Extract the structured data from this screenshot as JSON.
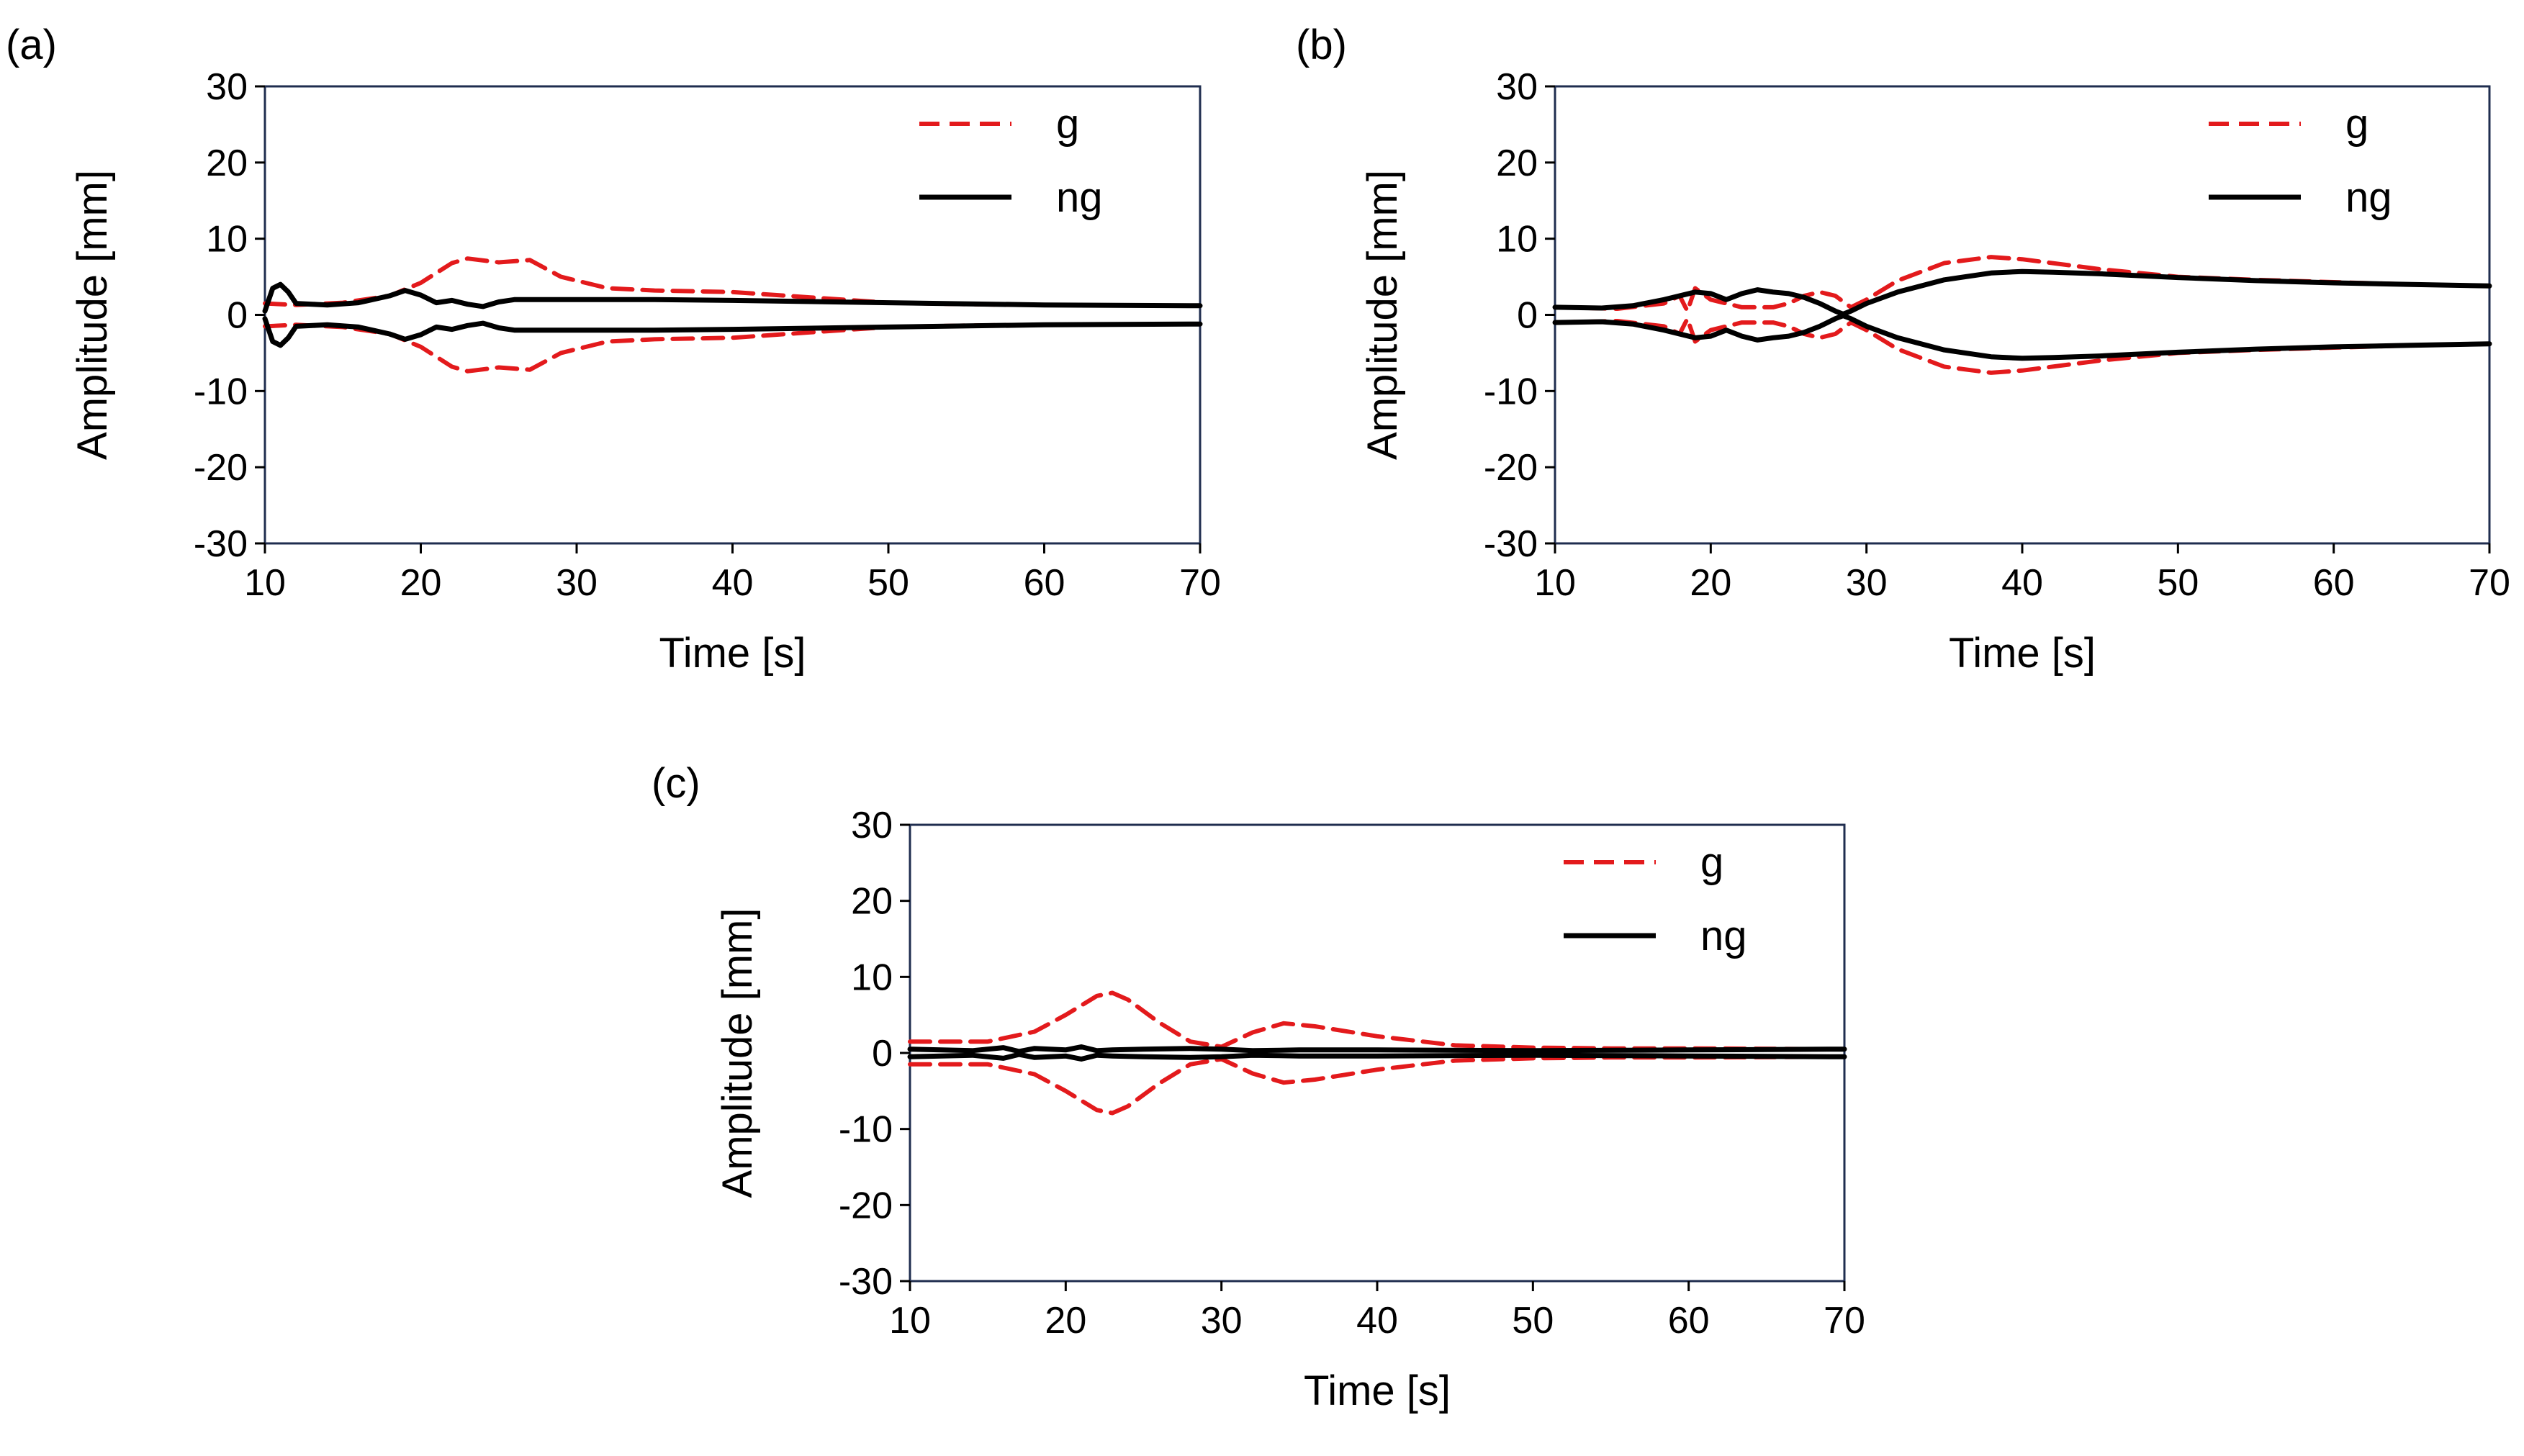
{
  "chart_data": [
    {
      "panel": "(a)",
      "type": "line",
      "xlabel": "Time [s]",
      "ylabel": "Amplitude [mm]",
      "xlim": [
        10,
        70
      ],
      "ylim": [
        -30,
        30
      ],
      "xticks": [
        10,
        20,
        30,
        40,
        50,
        60,
        70
      ],
      "yticks": [
        30,
        20,
        10,
        0,
        -10,
        -20,
        -30
      ],
      "legend": "top-right",
      "series": [
        {
          "name": "g",
          "style": "dashed",
          "color": "#e31a1c",
          "mirror": true,
          "x": [
            10,
            12,
            15,
            18,
            20,
            22,
            23,
            25,
            27,
            29,
            32,
            35,
            40,
            45,
            50,
            55,
            60,
            70
          ],
          "y": [
            1.5,
            1.3,
            1.6,
            2.5,
            4.2,
            6.8,
            7.4,
            6.9,
            7.2,
            5.0,
            3.5,
            3.2,
            3.0,
            2.3,
            1.6,
            1.4,
            1.3,
            1.2
          ]
        },
        {
          "name": "ng",
          "style": "solid",
          "color": "#000000",
          "mirror": true,
          "x": [
            10,
            10.5,
            11,
            11.5,
            12,
            14,
            16,
            18,
            19,
            20,
            21,
            22,
            23,
            24,
            25,
            26,
            28,
            30,
            35,
            40,
            50,
            60,
            70
          ],
          "y": [
            0.5,
            3.5,
            4.0,
            3.0,
            1.5,
            1.3,
            1.6,
            2.5,
            3.2,
            2.6,
            1.6,
            1.9,
            1.4,
            1.1,
            1.7,
            2.0,
            2.0,
            2.0,
            2.0,
            1.9,
            1.6,
            1.3,
            1.2
          ]
        }
      ]
    },
    {
      "panel": "(b)",
      "type": "line",
      "xlabel": "Time [s]",
      "ylabel": "Amplitude [mm]",
      "xlim": [
        10,
        70
      ],
      "ylim": [
        -30,
        30
      ],
      "xticks": [
        10,
        20,
        30,
        40,
        50,
        60,
        70
      ],
      "yticks": [
        30,
        20,
        10,
        0,
        -10,
        -20,
        -30
      ],
      "legend": "top-right",
      "series": [
        {
          "name": "g",
          "style": "dashed",
          "color": "#e31a1c",
          "mirror": true,
          "x": [
            10,
            14,
            17,
            18,
            18.5,
            19,
            20,
            22,
            24,
            25,
            26,
            27,
            28,
            29,
            30,
            32,
            35,
            38,
            40,
            45,
            50,
            55,
            60,
            65,
            70
          ],
          "y": [
            1.0,
            0.8,
            1.5,
            2.5,
            0.5,
            3.5,
            2.0,
            1.0,
            1.0,
            1.5,
            2.5,
            3.0,
            2.5,
            1.0,
            2.0,
            4.5,
            6.8,
            7.6,
            7.3,
            6.0,
            5.0,
            4.6,
            4.3,
            4.0,
            3.8
          ]
        },
        {
          "name": "ng",
          "style": "solid",
          "color": "#000000",
          "mirror": true,
          "x": [
            10,
            13,
            15,
            17,
            19,
            20,
            21,
            22,
            23,
            24,
            25,
            26,
            27,
            28,
            28.5,
            29,
            30,
            32,
            35,
            38,
            40,
            42,
            45,
            50,
            55,
            60,
            65,
            70
          ],
          "y": [
            1.0,
            0.9,
            1.2,
            2.0,
            3.0,
            2.8,
            2.0,
            2.8,
            3.3,
            3.0,
            2.8,
            2.3,
            1.5,
            0.5,
            0.1,
            0.5,
            1.5,
            3.0,
            4.6,
            5.5,
            5.7,
            5.6,
            5.4,
            4.9,
            4.5,
            4.2,
            4.0,
            3.8
          ]
        }
      ]
    },
    {
      "panel": "(c)",
      "type": "line",
      "xlabel": "Time [s]",
      "ylabel": "Amplitude [mm]",
      "xlim": [
        10,
        70
      ],
      "ylim": [
        -30,
        30
      ],
      "xticks": [
        10,
        20,
        30,
        40,
        50,
        60,
        70
      ],
      "yticks": [
        30,
        20,
        10,
        0,
        -10,
        -20,
        -30
      ],
      "legend": "top-right",
      "series": [
        {
          "name": "g",
          "style": "dashed",
          "color": "#e31a1c",
          "mirror": true,
          "x": [
            10,
            15,
            18,
            20,
            22,
            23,
            24,
            26,
            28,
            30,
            32,
            34,
            36,
            40,
            45,
            50,
            55,
            60,
            70
          ],
          "y": [
            1.5,
            1.5,
            2.8,
            5.0,
            7.5,
            7.9,
            7.0,
            4.0,
            1.5,
            0.8,
            2.7,
            3.9,
            3.5,
            2.2,
            1.0,
            0.7,
            0.6,
            0.6,
            0.5
          ]
        },
        {
          "name": "ng",
          "style": "solid",
          "color": "#000000",
          "mirror": true,
          "x": [
            10,
            14,
            16,
            17,
            18,
            20,
            21,
            22,
            23,
            25,
            28,
            30,
            32,
            35,
            40,
            50,
            60,
            70
          ],
          "y": [
            0.5,
            0.3,
            0.7,
            0.2,
            0.6,
            0.4,
            0.8,
            0.3,
            0.4,
            0.5,
            0.6,
            0.5,
            0.3,
            0.4,
            0.4,
            0.3,
            0.4,
            0.5
          ]
        }
      ]
    }
  ]
}
